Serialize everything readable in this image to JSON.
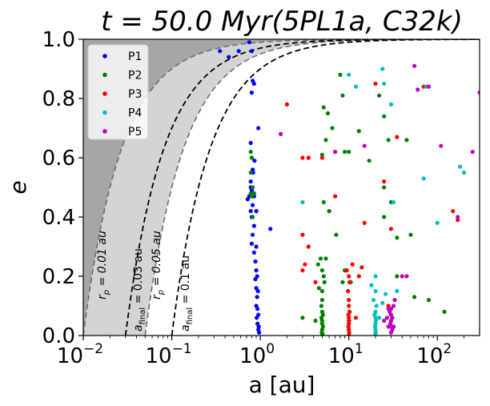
{
  "chart_data": {
    "type": "scatter",
    "title": "t = 50.0 Myr(5PL1a, C32k)",
    "xlabel": "a [au]",
    "ylabel": "e",
    "xscale": "log",
    "xlim": [
      0.01,
      300
    ],
    "ylim": [
      0.0,
      1.0
    ],
    "x_ticks": [
      {
        "value": 0.01,
        "base": "10",
        "exp": "−2"
      },
      {
        "value": 0.1,
        "base": "10",
        "exp": "−1"
      },
      {
        "value": 1,
        "base": "10",
        "exp": "0"
      },
      {
        "value": 10,
        "base": "10",
        "exp": "1"
      },
      {
        "value": 100,
        "base": "10",
        "exp": "2"
      }
    ],
    "y_ticks": [
      "0.0",
      "0.2",
      "0.4",
      "0.6",
      "0.8",
      "1.0"
    ],
    "y_tick_values": [
      0,
      0.2,
      0.4,
      0.6,
      0.8,
      1.0
    ],
    "legend_position": "upper-left",
    "colors": {
      "P1": "#0000ff",
      "P2": "#008000",
      "P3": "#ff0000",
      "P4": "#00bfbf",
      "P5": "#bf00bf",
      "dark_region": "#a6a6a6",
      "light_region": "#d4d4d4"
    },
    "pericenter_curves": [
      {
        "rp": 0.01,
        "label": "r_p = 0.01 au",
        "style": "grey-dashed"
      },
      {
        "rp": 0.05,
        "label": "r_p = 0.05 au",
        "style": "grey-dashed"
      },
      {
        "rp": 0.03,
        "label": "a_final = 0.03 au",
        "style": "black-dashed"
      },
      {
        "rp": 0.1,
        "label": "a_final = 0.1 au",
        "style": "black-dashed"
      }
    ],
    "annotations": {
      "rp1": {
        "pre": "r",
        "sub": "p",
        "post": " = 0.01 au"
      },
      "af1": {
        "pre": "a",
        "sub": "final",
        "post": " = 0.03 au"
      },
      "rp2": {
        "pre": "r",
        "sub": "p",
        "post": " = 0.05 au"
      },
      "af2": {
        "pre": "a",
        "sub": "final",
        "post": " = 0.1 au"
      }
    },
    "series": [
      {
        "name": "P1",
        "color": "#0000ff",
        "points": [
          [
            0.35,
            0.96
          ],
          [
            0.44,
            0.94
          ],
          [
            0.57,
            0.96
          ],
          [
            0.75,
            0.99
          ],
          [
            0.8,
            0.96
          ],
          [
            0.82,
            0.86
          ],
          [
            0.85,
            0.85
          ],
          [
            0.8,
            0.82
          ],
          [
            0.78,
            0.65
          ],
          [
            0.8,
            0.6
          ],
          [
            0.82,
            0.56
          ],
          [
            0.78,
            0.52
          ],
          [
            0.78,
            0.5
          ],
          [
            0.8,
            0.49
          ],
          [
            0.75,
            0.47
          ],
          [
            0.72,
            0.46
          ],
          [
            0.85,
            0.47
          ],
          [
            0.82,
            0.44
          ],
          [
            0.78,
            0.42
          ],
          [
            0.9,
            0.42
          ],
          [
            0.95,
            0.7
          ],
          [
            0.8,
            0.4
          ],
          [
            0.85,
            0.37
          ],
          [
            0.82,
            0.34
          ],
          [
            0.8,
            0.31
          ],
          [
            0.85,
            0.28
          ],
          [
            0.88,
            0.25
          ],
          [
            0.9,
            0.22
          ],
          [
            0.88,
            0.19
          ],
          [
            0.9,
            0.16
          ],
          [
            0.92,
            0.13
          ],
          [
            0.9,
            0.1
          ],
          [
            0.95,
            0.07
          ],
          [
            0.93,
            0.04
          ],
          [
            0.95,
            0.02
          ],
          [
            0.97,
            0.01
          ],
          [
            1.3,
            0.36
          ],
          [
            0.9,
            0.3
          ],
          [
            0.92,
            0.2
          ],
          [
            0.94,
            0.15
          ],
          [
            0.93,
            0.09
          ],
          [
            0.91,
            0.06
          ],
          [
            0.96,
            0.03
          ],
          [
            0.83,
            0.55
          ],
          [
            0.86,
            0.59
          ]
        ]
      },
      {
        "name": "P2",
        "color": "#008000",
        "points": [
          [
            0.78,
            0.62
          ],
          [
            0.8,
            0.6
          ],
          [
            0.78,
            0.55
          ],
          [
            0.82,
            0.5
          ],
          [
            0.8,
            0.47
          ],
          [
            0.85,
            0.48
          ],
          [
            0.78,
            0.48
          ],
          [
            0.82,
            0.4
          ],
          [
            3.0,
            0.06
          ],
          [
            4.5,
            0.24
          ],
          [
            4.8,
            0.26
          ],
          [
            5.0,
            0.22
          ],
          [
            5.2,
            0.2
          ],
          [
            4.6,
            0.16
          ],
          [
            5.0,
            0.12
          ],
          [
            4.9,
            0.1
          ],
          [
            5.0,
            0.08
          ],
          [
            5.1,
            0.07
          ],
          [
            4.9,
            0.06
          ],
          [
            5.0,
            0.05
          ],
          [
            5.0,
            0.04
          ],
          [
            5.1,
            0.03
          ],
          [
            5.0,
            0.02
          ],
          [
            4.95,
            0.01
          ],
          [
            5.05,
            0.005
          ],
          [
            5.0,
            0.0
          ],
          [
            4.2,
            0.05
          ],
          [
            5.5,
            0.26
          ],
          [
            5.2,
            0.45
          ],
          [
            5.0,
            0.61
          ],
          [
            5.5,
            0.66
          ],
          [
            5.8,
            0.75
          ],
          [
            6.5,
            0.7
          ],
          [
            5.2,
            0.77
          ],
          [
            6.0,
            0.42
          ],
          [
            7.2,
            0.34
          ],
          [
            8.0,
            0.88
          ],
          [
            8.5,
            0.81
          ],
          [
            9.0,
            0.62
          ],
          [
            10.0,
            0.62
          ],
          [
            13.0,
            0.69
          ],
          [
            17.0,
            0.59
          ],
          [
            22.0,
            0.81
          ],
          [
            25.0,
            0.74
          ],
          [
            25.0,
            0.5
          ],
          [
            28.0,
            0.66
          ],
          [
            25.0,
            0.4
          ],
          [
            30.0,
            0.45
          ],
          [
            35.0,
            0.2
          ],
          [
            35.0,
            0.33
          ],
          [
            45.0,
            0.66
          ],
          [
            50.0,
            0.34
          ],
          [
            55.0,
            0.13
          ],
          [
            80.0,
            0.12
          ],
          [
            120.0,
            0.08
          ],
          [
            9.0,
            0.22
          ],
          [
            10.5,
            0.18
          ],
          [
            8.5,
            0.18
          ],
          [
            5.3,
            0.18
          ],
          [
            5.0,
            0.15
          ]
        ]
      },
      {
        "name": "P3",
        "color": "#ff0000",
        "points": [
          [
            2.0,
            0.78
          ],
          [
            3.0,
            0.6
          ],
          [
            3.5,
            0.6
          ],
          [
            3.0,
            0.34
          ],
          [
            3.5,
            0.3
          ],
          [
            3.2,
            0.24
          ],
          [
            3.0,
            0.22
          ],
          [
            4.2,
            0.18
          ],
          [
            5.0,
            0.6
          ],
          [
            7.0,
            0.47
          ],
          [
            10.0,
            0.05
          ],
          [
            9.5,
            0.22
          ],
          [
            10.0,
            0.2
          ],
          [
            10.2,
            0.18
          ],
          [
            9.8,
            0.15
          ],
          [
            10.0,
            0.12
          ],
          [
            10.0,
            0.1
          ],
          [
            10.2,
            0.08
          ],
          [
            9.9,
            0.07
          ],
          [
            10.0,
            0.06
          ],
          [
            10.1,
            0.05
          ],
          [
            10.0,
            0.04
          ],
          [
            9.9,
            0.03
          ],
          [
            10.0,
            0.02
          ],
          [
            10.1,
            0.01
          ],
          [
            10.0,
            0.0
          ],
          [
            11.0,
            0.24
          ],
          [
            12.0,
            0.06
          ],
          [
            13.0,
            0.2
          ],
          [
            14.0,
            0.23
          ],
          [
            15.0,
            0.38
          ],
          [
            20.0,
            0.85
          ],
          [
            30.0,
            0.36
          ],
          [
            25.0,
            0.52
          ],
          [
            35.0,
            0.67
          ],
          [
            70.0,
            0.84
          ],
          [
            150.0,
            0.42
          ],
          [
            170.0,
            0.39
          ],
          [
            28.0,
            0.1
          ]
        ]
      },
      {
        "name": "P4",
        "color": "#00bfbf",
        "points": [
          [
            3.0,
            0.45
          ],
          [
            10.0,
            0.88
          ],
          [
            12.0,
            0.84
          ],
          [
            20.0,
            0.2
          ],
          [
            18.0,
            0.17
          ],
          [
            20.0,
            0.15
          ],
          [
            19.0,
            0.12
          ],
          [
            20.5,
            0.1
          ],
          [
            20.0,
            0.08
          ],
          [
            19.5,
            0.07
          ],
          [
            20.0,
            0.06
          ],
          [
            20.2,
            0.05
          ],
          [
            20.0,
            0.04
          ],
          [
            19.8,
            0.03
          ],
          [
            20.0,
            0.02
          ],
          [
            20.1,
            0.01
          ],
          [
            20.0,
            0.005
          ],
          [
            24.0,
            0.9
          ],
          [
            25.0,
            0.85
          ],
          [
            30.0,
            0.78
          ],
          [
            32.0,
            0.45
          ],
          [
            35.0,
            0.15
          ],
          [
            70.0,
            0.53
          ],
          [
            75.0,
            0.84
          ],
          [
            100.0,
            0.38
          ],
          [
            180.0,
            0.57
          ],
          [
            200.0,
            0.55
          ],
          [
            22.0,
            0.06
          ],
          [
            26.0,
            0.14
          ],
          [
            24.0,
            0.11
          ]
        ]
      },
      {
        "name": "P5",
        "color": "#bf00bf",
        "points": [
          [
            1.7,
            0.68
          ],
          [
            7.0,
            0.62
          ],
          [
            15.0,
            0.64
          ],
          [
            25.0,
            0.05
          ],
          [
            28.0,
            0.09
          ],
          [
            29.0,
            0.08
          ],
          [
            30.0,
            0.07
          ],
          [
            31.0,
            0.06
          ],
          [
            30.0,
            0.05
          ],
          [
            29.5,
            0.04
          ],
          [
            30.0,
            0.03
          ],
          [
            31.0,
            0.02
          ],
          [
            30.0,
            0.01
          ],
          [
            32.0,
            0.03
          ],
          [
            27.0,
            0.06
          ],
          [
            28.0,
            0.03
          ],
          [
            33.0,
            0.12
          ],
          [
            40.0,
            0.2
          ],
          [
            45.0,
            0.2
          ],
          [
            55.0,
            0.91
          ],
          [
            60.0,
            0.83
          ],
          [
            80.0,
            0.84
          ],
          [
            110.0,
            0.64
          ],
          [
            170.0,
            0.4
          ],
          [
            250.0,
            0.62
          ],
          [
            300.0,
            0.82
          ],
          [
            30.0,
            0.09
          ],
          [
            32.0,
            0.1
          ]
        ]
      }
    ]
  }
}
